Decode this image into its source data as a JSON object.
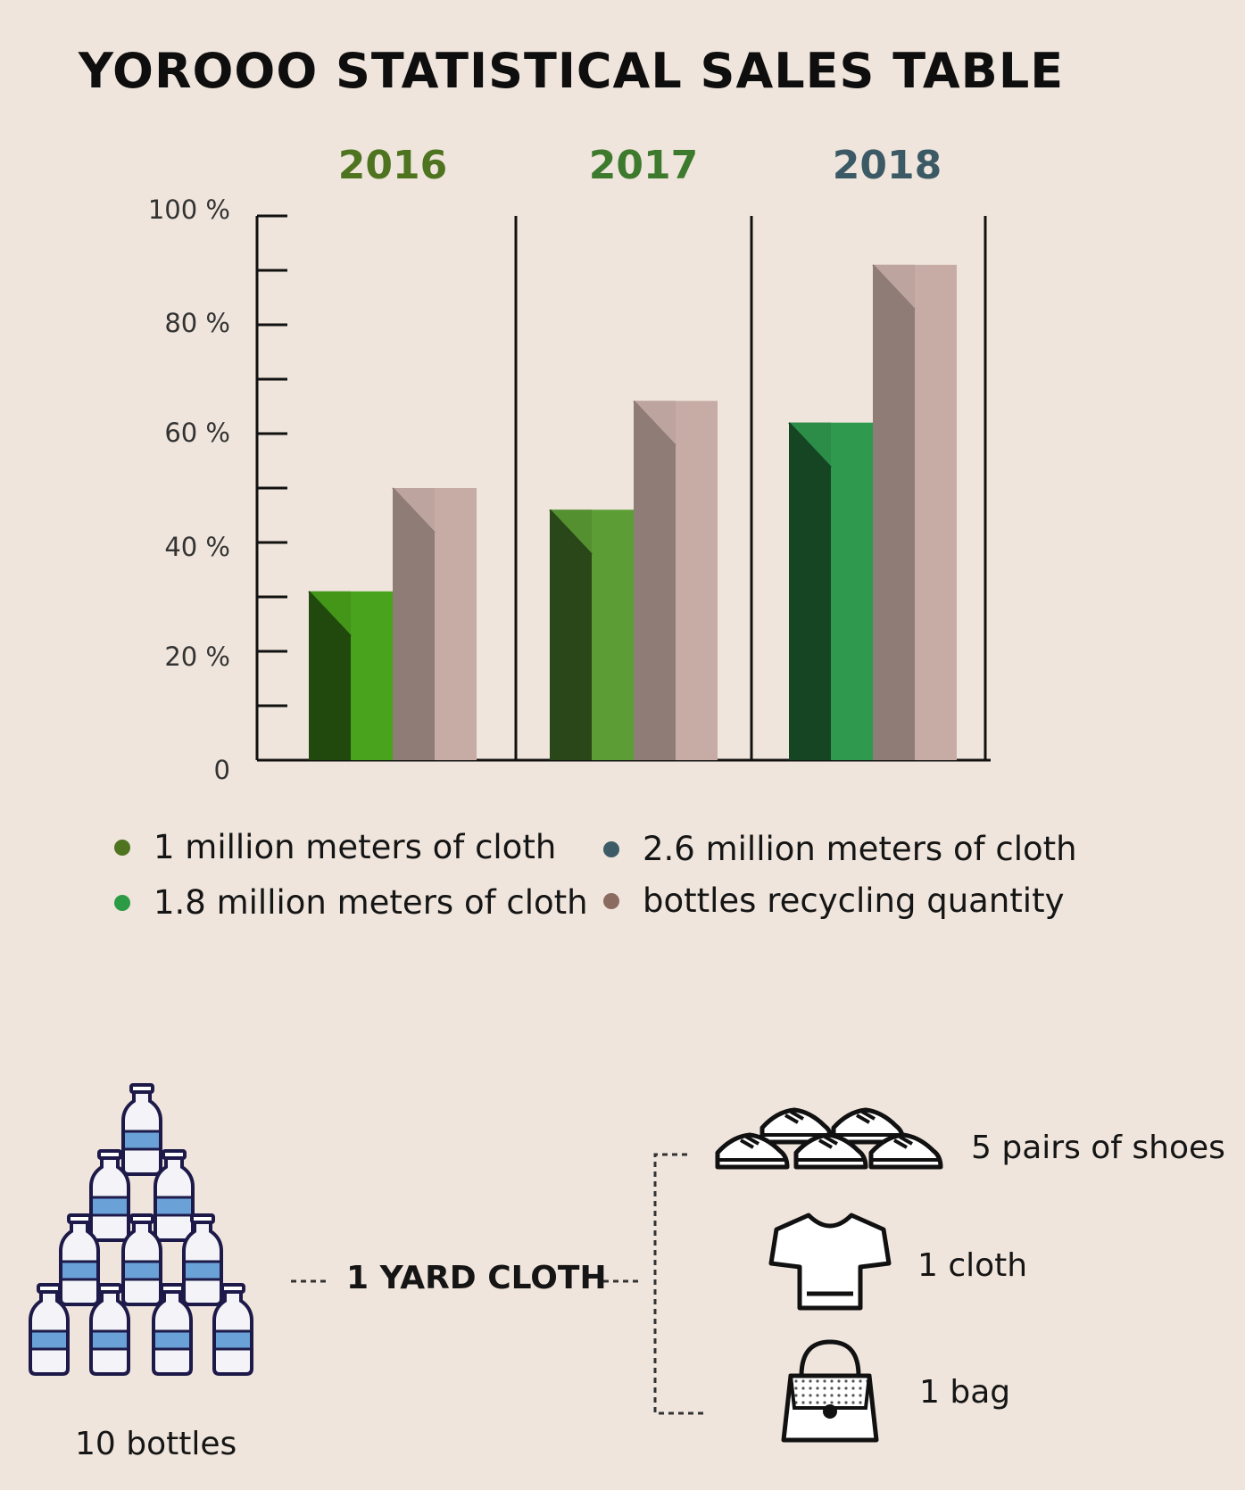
{
  "title": "YOROOO STATISTICAL SALES TABLE",
  "colors": {
    "year_2016": "#4f7420",
    "year_2017": "#3d7a2d",
    "year_2018": "#3c5a66",
    "green_2016": "#4aa31c",
    "green_2017": "#5c9e35",
    "green_2018": "#2f9a4e",
    "bottle_bar": "#c7aca5",
    "legend_dot_1": "#4f7420",
    "legend_dot_2": "#2d9a45",
    "legend_dot_3": "#3d5b66",
    "legend_dot_4": "#8b6b60"
  },
  "chart_data": {
    "type": "bar",
    "title": "YOROOO STATISTICAL SALES TABLE",
    "categories": [
      "2016",
      "2017",
      "2018"
    ],
    "y_tick_labels": [
      "0",
      "20 %",
      "40 %",
      "60 %",
      "80 %",
      "100 %"
    ],
    "ylim": [
      0,
      100
    ],
    "series": [
      {
        "name": "cloth",
        "values": [
          31,
          46,
          62
        ]
      },
      {
        "name": "bottles recycling quantity",
        "values": [
          50,
          66,
          91
        ]
      }
    ],
    "legend": [
      "1 million meters of cloth",
      "1.8 million meters of cloth",
      "2.6 million meters of cloth",
      "bottles recycling quantity"
    ],
    "legend_placement": "bottom"
  },
  "infographic": {
    "bottles_label": "10 bottles",
    "yard_label": "1 YARD CLOTH",
    "shoes_label": "5 pairs of shoes",
    "cloth_label": "1 cloth",
    "bag_label": "1 bag"
  }
}
